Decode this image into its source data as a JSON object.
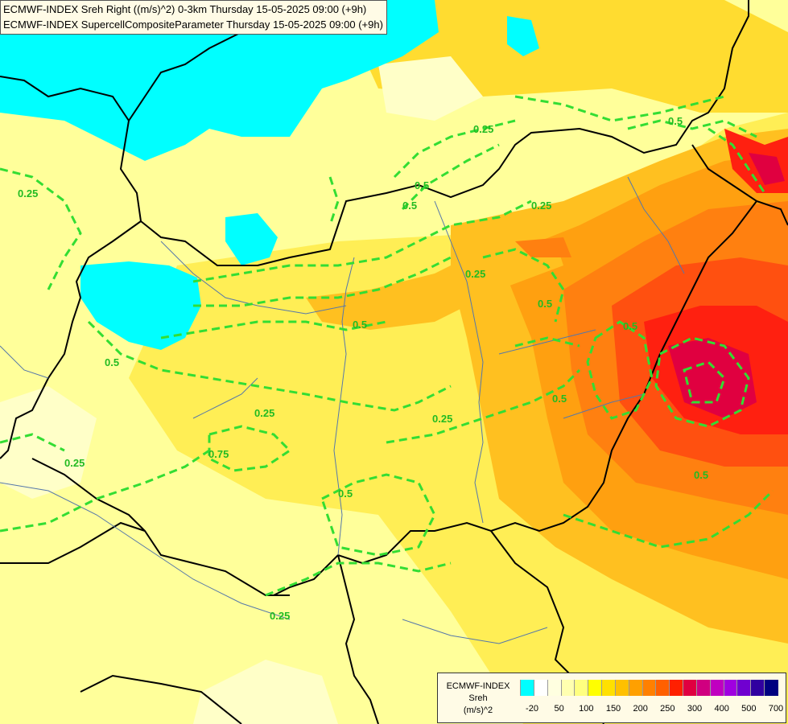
{
  "title_lines": [
    "ECMWF-INDEX Sreh Right ((m/s)^2) 0-3km Thursday 15-05-2025 09:00 (+9h)",
    "ECMWF-INDEX SupercellCompositeParameter Thursday 15-05-2025 09:00 (+9h)"
  ],
  "legend": {
    "title_lines": [
      "ECMWF-INDEX",
      "Sreh",
      "(m/s)^2"
    ],
    "colors": [
      "#00ffff",
      "#ffffff",
      "#ffffe0",
      "#ffffb0",
      "#ffff80",
      "#ffff00",
      "#ffe000",
      "#ffc000",
      "#ffa000",
      "#ff8000",
      "#ff6000",
      "#ff2000",
      "#e00040",
      "#d00080",
      "#c000c0",
      "#a000e0",
      "#7000d0",
      "#3000a0",
      "#000080"
    ],
    "tick_labels": [
      "-20",
      "50",
      "100",
      "150",
      "200",
      "250",
      "300",
      "400",
      "500",
      "700"
    ]
  },
  "contour_labels": [
    "0.25",
    "0.5",
    "0.25",
    "0.25",
    "0.5",
    "0.5",
    "0.25",
    "0.5",
    "0.5",
    "0.5",
    "0.25",
    "0.75",
    "0.5",
    "0.25",
    "0.5",
    "0.25",
    "0.5",
    "0.5",
    "0.25"
  ],
  "colors": {
    "contour": "#33dd33",
    "border": "#000000",
    "river": "#5577aa"
  }
}
